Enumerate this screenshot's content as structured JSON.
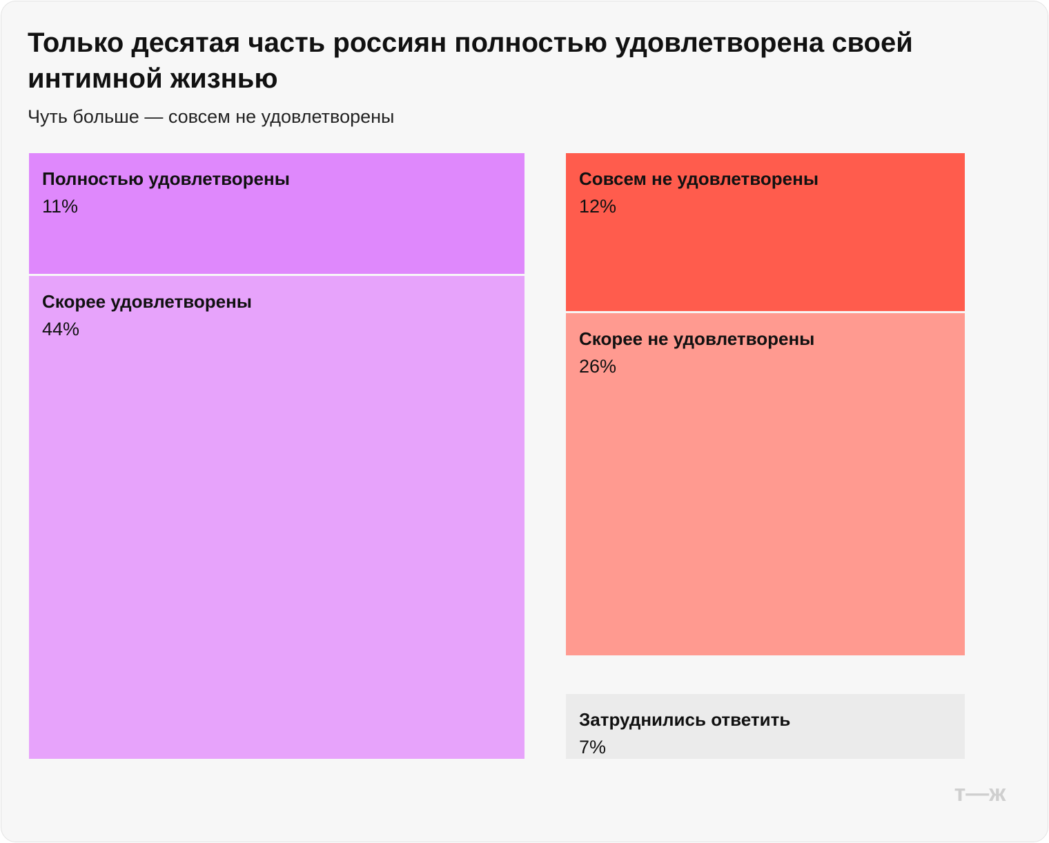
{
  "chart_data": {
    "type": "treemap",
    "title": "Только десятая часть россиян полностью удовлетворена своей интимной жизнью",
    "subtitle": "Чуть больше — совсем не удовлетворены",
    "categories": [
      "Полностью удовлетворены",
      "Скорее удовлетворены",
      "Совсем не удовлетворены",
      "Скорее не удовлетворены",
      "Затруднились ответить"
    ],
    "values": [
      11,
      44,
      12,
      26,
      7
    ],
    "value_labels": [
      "11%",
      "44%",
      "12%",
      "26%",
      "7%"
    ],
    "colors": [
      "#df88fc",
      "#e7a3fb",
      "#ff5c4d",
      "#ff9a90",
      "#ebebeb"
    ],
    "logo": "т—ж"
  }
}
